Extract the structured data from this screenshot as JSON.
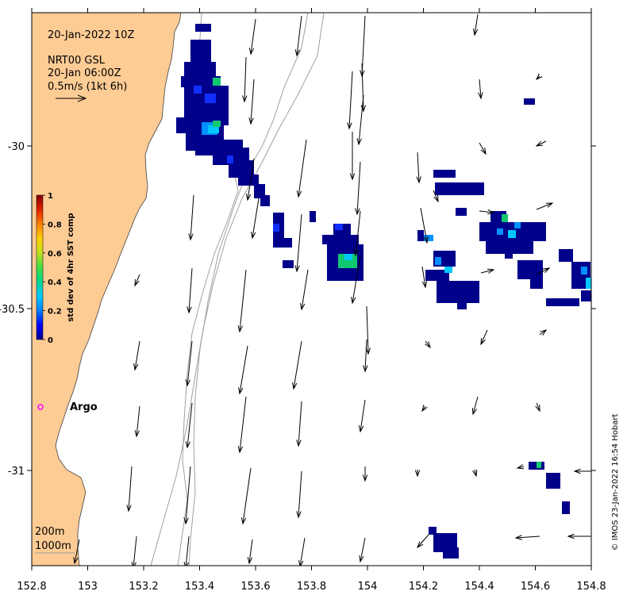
{
  "timestamp": "20-Jan-2022 10Z",
  "product": {
    "line1": "NRT00 GSL",
    "line2": "20-Jan 06:00Z",
    "scale_label": "0.5m/s (1kt 6h)"
  },
  "colorbar": {
    "title": "std dev of 4hr SST comp",
    "min": 0,
    "max": 1,
    "ticks": [
      "0",
      "0.2",
      "0.4",
      "0.6",
      "0.8",
      "1"
    ],
    "colors": [
      "#00008b",
      "#0000ff",
      "#0080ff",
      "#00c8ff",
      "#00d890",
      "#40e040",
      "#c0e020",
      "#ffd000",
      "#ff8000",
      "#e02000",
      "#800000"
    ]
  },
  "axes": {
    "x_ticks": [
      "152.8",
      "153",
      "153.2",
      "153.4",
      "153.6",
      "153.8",
      "154",
      "154.2",
      "154.4",
      "154.6",
      "154.8"
    ],
    "y_ticks": [
      "-30",
      "-30.5",
      "-31"
    ]
  },
  "legend": {
    "contour_shallow": "200m",
    "contour_deep": "1000m"
  },
  "markers": [
    {
      "label": "Argo",
      "lon": 152.83,
      "lat": -30.81,
      "color": "#ff00ff"
    }
  ],
  "credit": "© IMOS 23-Jan-2022 16:54 Hobart",
  "colors": {
    "land": "#fdcb94",
    "contour": "#a0a0a0",
    "vector": "#000000",
    "marker": "#ff00ff"
  }
}
